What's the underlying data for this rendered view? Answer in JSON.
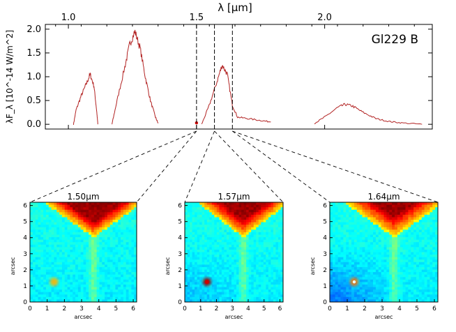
{
  "chart_data": [
    {
      "type": "line",
      "title": "",
      "annotation": "Gl229 B",
      "xlabel": "λ [μm]",
      "ylabel": "λF_λ [10^-14 W/m^2]",
      "xlim": [
        0.91,
        2.42
      ],
      "ylim": [
        -0.1,
        2.1
      ],
      "x_ticks": [
        "1.0",
        "1.5",
        "2.0"
      ],
      "y_ticks": [
        "0.0",
        "0.5",
        "1.0",
        "1.5",
        "2.0"
      ],
      "series": [
        {
          "color": "#b22222",
          "segments": [
            [
              [
                1.02,
                0.0
              ],
              [
                1.03,
                0.3
              ],
              [
                1.05,
                0.6
              ],
              [
                1.07,
                0.85
              ],
              [
                1.085,
                1.05
              ],
              [
                1.1,
                0.8
              ],
              [
                1.11,
                0.3
              ],
              [
                1.115,
                0.0
              ]
            ],
            [
              [
                1.17,
                0.0
              ],
              [
                1.19,
                0.5
              ],
              [
                1.22,
                1.2
              ],
              [
                1.24,
                1.7
              ],
              [
                1.26,
                1.95
              ],
              [
                1.28,
                1.6
              ],
              [
                1.3,
                1.0
              ],
              [
                1.32,
                0.5
              ],
              [
                1.34,
                0.15
              ],
              [
                1.35,
                0.02
              ]
            ],
            [
              [
                1.52,
                0.0
              ],
              [
                1.55,
                0.4
              ],
              [
                1.58,
                0.9
              ],
              [
                1.6,
                1.25
              ],
              [
                1.62,
                1.05
              ],
              [
                1.64,
                0.4
              ],
              [
                1.66,
                0.15
              ],
              [
                1.7,
                0.12
              ],
              [
                1.75,
                0.08
              ],
              [
                1.79,
                0.05
              ]
            ],
            [
              [
                1.96,
                0.02
              ],
              [
                2.0,
                0.15
              ],
              [
                2.05,
                0.35
              ],
              [
                2.08,
                0.42
              ],
              [
                2.11,
                0.38
              ],
              [
                2.15,
                0.25
              ],
              [
                2.2,
                0.12
              ],
              [
                2.25,
                0.06
              ],
              [
                2.3,
                0.03
              ],
              [
                2.38,
                0.0
              ]
            ]
          ]
        }
      ],
      "markers": [
        1.5,
        1.57,
        1.64
      ]
    },
    {
      "type": "heatmap",
      "title": "1.50μm",
      "xlabel": "arcsec",
      "ylabel": "arcsec",
      "xlim": [
        0,
        6.2
      ],
      "ylim": [
        0,
        6.2
      ],
      "x_ticks": [
        "0",
        "1",
        "2",
        "3",
        "4",
        "5",
        "6"
      ],
      "y_ticks": [
        "0",
        "1",
        "2",
        "3",
        "4",
        "5",
        "6"
      ],
      "companion": {
        "x": 1.4,
        "y": 1.25,
        "strength": 0.25
      },
      "wing": 1.0
    },
    {
      "type": "heatmap",
      "title": "1.57μm",
      "xlabel": "arcsec",
      "ylabel": "arcsec",
      "xlim": [
        0,
        6.2
      ],
      "ylim": [
        0,
        6.2
      ],
      "x_ticks": [
        "0",
        "1",
        "2",
        "3",
        "4",
        "5",
        "6"
      ],
      "y_ticks": [
        "0",
        "1",
        "2",
        "3",
        "4",
        "5",
        "6"
      ],
      "companion": {
        "x": 1.4,
        "y": 1.25,
        "strength": 0.95
      },
      "wing": 0.9
    },
    {
      "type": "heatmap",
      "title": "1.64μm",
      "xlabel": "arcsec",
      "ylabel": "arcsec",
      "xlim": [
        0,
        6.2
      ],
      "ylim": [
        0,
        6.2
      ],
      "x_ticks": [
        "0",
        "1",
        "2",
        "3",
        "4",
        "5",
        "6"
      ],
      "y_ticks": [
        "0",
        "1",
        "2",
        "3",
        "4",
        "5",
        "6"
      ],
      "companion": {
        "x": 1.4,
        "y": 1.25,
        "strength": 0.4
      },
      "wing": 0.75
    }
  ]
}
